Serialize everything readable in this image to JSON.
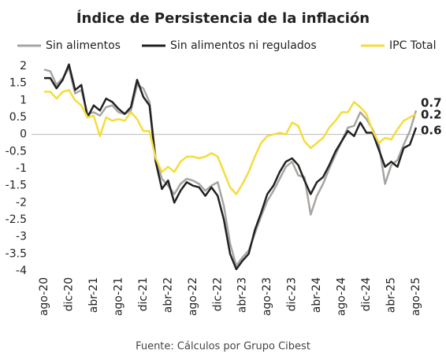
{
  "chart_data": {
    "type": "line",
    "title": "Índice de Persistencia de la inflación",
    "source": "Fuente: Cálculos por Grupo Cibest",
    "categories": [
      "ago-20",
      null,
      null,
      null,
      "dic-20",
      null,
      null,
      null,
      "abr-21",
      null,
      null,
      null,
      "ago-21",
      null,
      null,
      null,
      "dic-21",
      null,
      null,
      null,
      "abr-22",
      null,
      null,
      null,
      "ago-22",
      null,
      null,
      null,
      "dic-22",
      null,
      null,
      null,
      "abr-23",
      null,
      null,
      null,
      "ago-23",
      null,
      null,
      null,
      "dic-23",
      null,
      null,
      null,
      "abr-24",
      null,
      null,
      null,
      "ago-24",
      null,
      null,
      null,
      "dic-24",
      null,
      null,
      null,
      "abr-25",
      null,
      null,
      null,
      "ago-25"
    ],
    "series": [
      {
        "name": "Sin alimentos",
        "color": "#a8a5a1",
        "values": [
          1.9,
          1.85,
          1.45,
          1.65,
          1.95,
          1.2,
          1.3,
          0.6,
          0.65,
          0.55,
          0.8,
          0.85,
          0.65,
          0.6,
          0.7,
          1.45,
          1.35,
          0.95,
          -0.7,
          -1.3,
          -1.5,
          -1.75,
          -1.45,
          -1.3,
          -1.35,
          -1.45,
          -1.65,
          -1.5,
          -1.4,
          -2.1,
          -3.2,
          -3.85,
          -3.6,
          -3.4,
          -2.9,
          -2.4,
          -1.95,
          -1.65,
          -1.3,
          -0.95,
          -0.8,
          -1.2,
          -1.25,
          -2.35,
          -1.8,
          -1.45,
          -1.0,
          -0.6,
          -0.2,
          0.2,
          0.25,
          0.65,
          0.45,
          0.15,
          -0.3,
          -1.45,
          -0.9,
          -0.75,
          -0.3,
          0.1,
          0.7
        ]
      },
      {
        "name": "Sin alimentos ni regulados",
        "color": "#222222",
        "values": [
          1.65,
          1.65,
          1.35,
          1.6,
          2.05,
          1.3,
          1.45,
          0.5,
          0.85,
          0.7,
          1.05,
          0.95,
          0.75,
          0.6,
          0.8,
          1.6,
          1.1,
          0.85,
          -0.8,
          -1.6,
          -1.35,
          -2.0,
          -1.65,
          -1.4,
          -1.5,
          -1.55,
          -1.8,
          -1.55,
          -1.8,
          -2.5,
          -3.5,
          -3.95,
          -3.7,
          -3.5,
          -2.8,
          -2.3,
          -1.75,
          -1.5,
          -1.1,
          -0.8,
          -0.7,
          -0.9,
          -1.35,
          -1.75,
          -1.4,
          -1.25,
          -0.9,
          -0.5,
          -0.2,
          0.1,
          -0.05,
          0.35,
          0.05,
          0.05,
          -0.45,
          -0.95,
          -0.8,
          -0.95,
          -0.4,
          -0.3,
          0.2
        ]
      },
      {
        "name": "IPC Total",
        "color": "#f5dc3c",
        "values": [
          1.25,
          1.25,
          1.05,
          1.25,
          1.3,
          1.0,
          0.85,
          0.5,
          0.55,
          -0.05,
          0.5,
          0.4,
          0.45,
          0.4,
          0.65,
          0.45,
          0.1,
          0.1,
          -0.7,
          -1.1,
          -0.95,
          -1.1,
          -0.8,
          -0.65,
          -0.65,
          -0.7,
          -0.65,
          -0.55,
          -0.65,
          -1.1,
          -1.55,
          -1.75,
          -1.45,
          -1.1,
          -0.65,
          -0.25,
          -0.05,
          0.0,
          0.05,
          0.0,
          0.35,
          0.25,
          -0.2,
          -0.4,
          -0.25,
          -0.1,
          0.2,
          0.4,
          0.65,
          0.65,
          0.95,
          0.8,
          0.6,
          0.1,
          -0.25,
          -0.1,
          -0.15,
          0.15,
          0.4,
          0.5,
          0.6
        ]
      }
    ],
    "label_colors": [
      "#a8a5a1",
      "#e8c800",
      "#222222"
    ],
    "ylim": [
      -4,
      2
    ],
    "yticks": [
      -4,
      -3.5,
      -3,
      -2.5,
      -2,
      -1.5,
      -1,
      -0.5,
      0,
      0.5,
      1,
      1.5,
      2
    ],
    "grid": false
  }
}
